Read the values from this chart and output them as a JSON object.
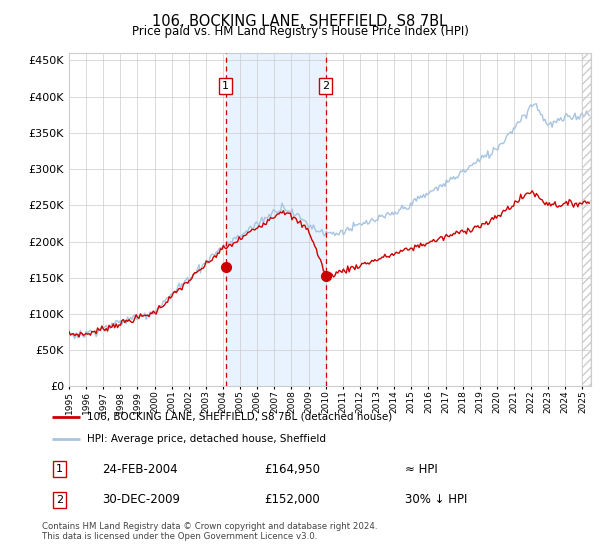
{
  "title": "106, BOCKING LANE, SHEFFIELD, S8 7BL",
  "subtitle": "Price paid vs. HM Land Registry's House Price Index (HPI)",
  "legend_line1": "106, BOCKING LANE, SHEFFIELD, S8 7BL (detached house)",
  "legend_line2": "HPI: Average price, detached house, Sheffield",
  "annotation1_date": "24-FEB-2004",
  "annotation1_price": "£164,950",
  "annotation1_hpi": "≈ HPI",
  "annotation2_date": "30-DEC-2009",
  "annotation2_price": "£152,000",
  "annotation2_hpi": "30% ↓ HPI",
  "footer": "Contains HM Land Registry data © Crown copyright and database right 2024.\nThis data is licensed under the Open Government Licence v3.0.",
  "sale1_year": 2004.15,
  "sale1_value": 164950,
  "sale2_year": 2010.0,
  "sale2_value": 152000,
  "hpi_color": "#a8c4e0",
  "price_color": "#cc0000",
  "bg_color": "#ffffff",
  "grid_color": "#cccccc",
  "shade_color": "#ddeeff",
  "vline_color": "#cc0000",
  "box_color": "#cc0000",
  "ylim": [
    0,
    460000
  ],
  "yticks": [
    0,
    50000,
    100000,
    150000,
    200000,
    250000,
    300000,
    350000,
    400000,
    450000
  ],
  "xmin": 1995,
  "xmax": 2025.5
}
